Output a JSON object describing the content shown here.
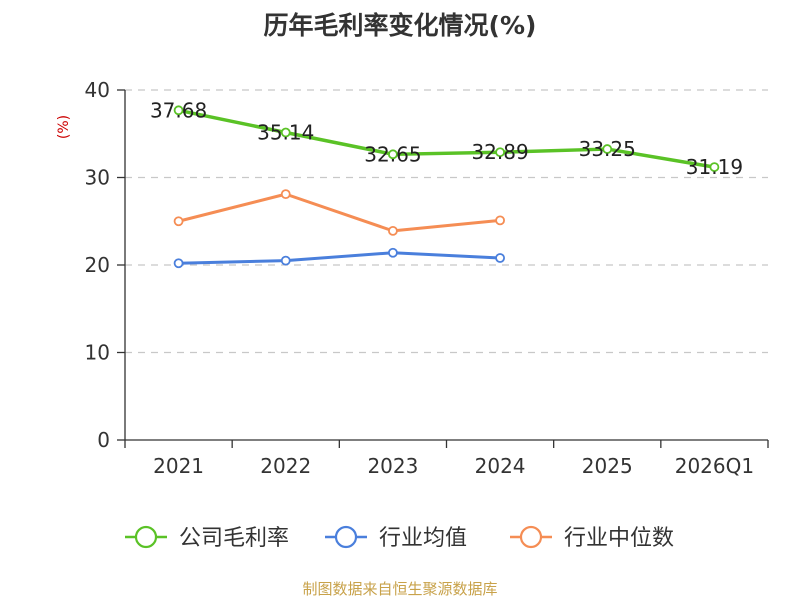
{
  "chart_data": {
    "type": "line",
    "title": "历年毛利率变化情况(%)",
    "ylabel": "(%)",
    "ylabel_color": "#cc0000",
    "categories": [
      "2021",
      "2022",
      "2023",
      "2024",
      "2025",
      "2026Q1"
    ],
    "ylim": [
      0,
      40
    ],
    "yticks": [
      0,
      10,
      20,
      30,
      40
    ],
    "ytick_labels": [
      "0",
      "10",
      "20",
      "30",
      "40"
    ],
    "grid": true,
    "legend_position": "bottom",
    "series": [
      {
        "name": "公司毛利率",
        "color": "#5ac226",
        "values": [
          37.68,
          35.14,
          32.65,
          32.89,
          33.25,
          31.19
        ],
        "labels": [
          "37.68",
          "35.14",
          "32.65",
          "32.89",
          "33.25",
          "31.19"
        ]
      },
      {
        "name": "行业均值",
        "color": "#4a7fdc",
        "values": [
          20.2,
          20.5,
          21.4,
          20.8,
          null,
          null
        ]
      },
      {
        "name": "行业中位数",
        "color": "#f58d54",
        "values": [
          25.0,
          28.1,
          23.9,
          25.1,
          null,
          null
        ]
      }
    ]
  },
  "source": "制图数据来自恒生聚源数据库",
  "source_color": "#c8a24a"
}
